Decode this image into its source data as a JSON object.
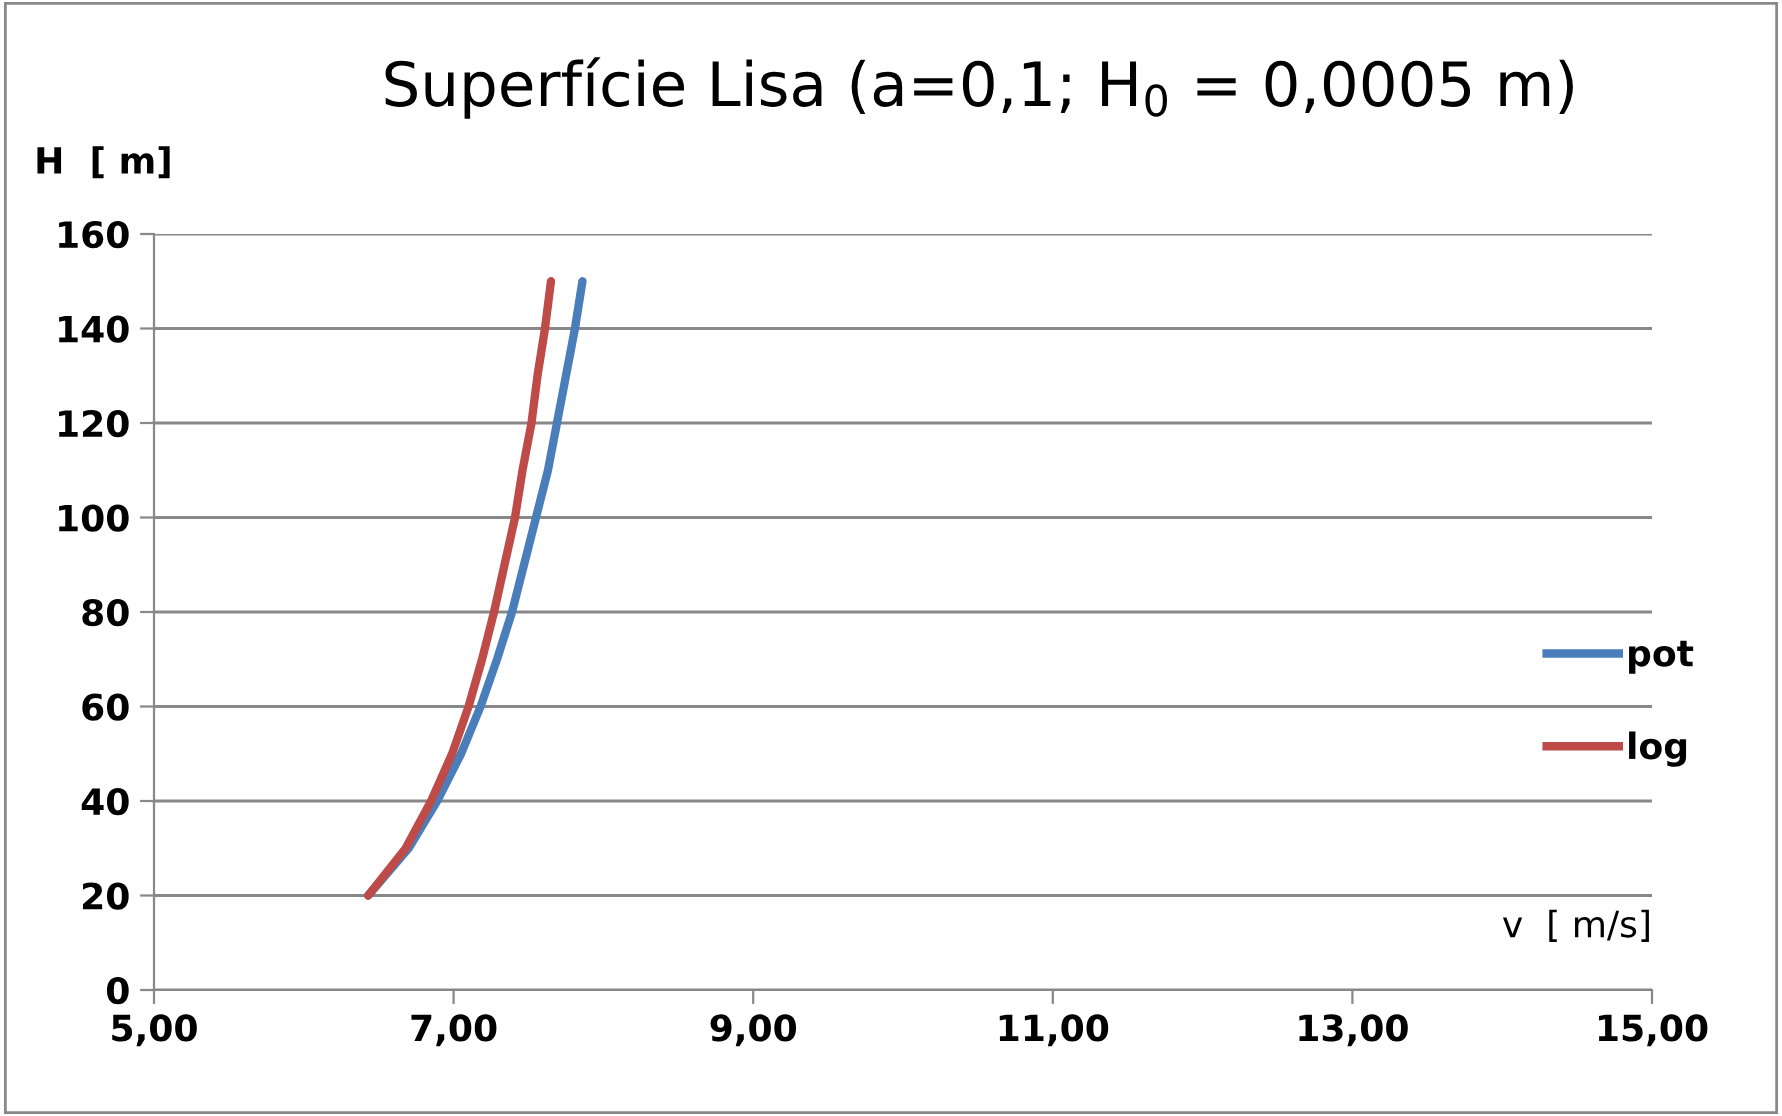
{
  "chart_data": {
    "type": "line",
    "title": "Superfície Lisa (a=0,1; H$_{0}$ = 0,0005 m)",
    "xlabel": "v  [ m/s]",
    "ylabel": "H  [ m]",
    "series": [
      {
        "name": "pot",
        "color": "#4a7ebb",
        "x": [
          6.43,
          6.7,
          6.89,
          7.05,
          7.18,
          7.29,
          7.39,
          7.47,
          7.55,
          7.63,
          7.69,
          7.75,
          7.81,
          7.86
        ],
        "values": [
          20,
          30,
          40,
          50,
          60,
          70,
          80,
          90,
          100,
          110,
          120,
          130,
          140,
          150
        ]
      },
      {
        "name": "log",
        "color": "#be4b48",
        "x": [
          6.43,
          6.68,
          6.85,
          6.99,
          7.1,
          7.19,
          7.27,
          7.34,
          7.41,
          7.46,
          7.52,
          7.56,
          7.61,
          7.65
        ],
        "values": [
          20,
          30,
          40,
          50,
          60,
          70,
          80,
          90,
          100,
          110,
          120,
          130,
          140,
          150
        ]
      }
    ],
    "xlim": [
      5,
      15
    ],
    "xticks": [
      {
        "value": 5,
        "label": "5,00"
      },
      {
        "value": 7,
        "label": "7,00"
      },
      {
        "value": 9,
        "label": "9,00"
      },
      {
        "value": 11,
        "label": "11,00"
      },
      {
        "value": 13,
        "label": "13,00"
      },
      {
        "value": 15,
        "label": "15,00"
      }
    ],
    "ylim": [
      0,
      160
    ],
    "yticks": [
      0,
      20,
      40,
      60,
      80,
      100,
      120,
      140,
      160
    ],
    "grid": "y",
    "legend": "right",
    "marker": "none",
    "line_style": "solid"
  }
}
